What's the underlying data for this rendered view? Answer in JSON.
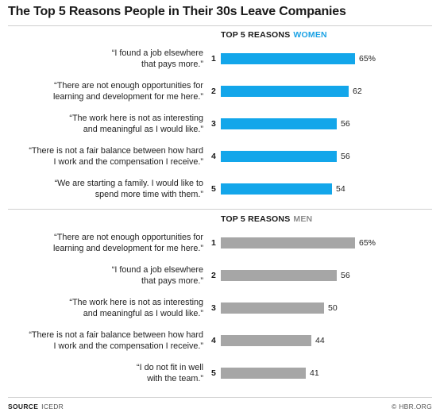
{
  "title": "The Top 5 Reasons People in Their 30s Leave Companies",
  "chart_data": [
    {
      "type": "bar",
      "orientation": "horizontal",
      "header_prefix": "TOP 5 REASONS",
      "header_group": "WOMEN",
      "accent_color": "#1aa1e4",
      "bar_color": "#13a6ea",
      "ranks": [
        "1",
        "2",
        "3",
        "4",
        "5"
      ],
      "categories": [
        [
          "“I found a job elsewhere",
          "that pays more.”"
        ],
        [
          "“There are not enough opportunities for",
          "learning and development for me here.”"
        ],
        [
          "“The work here is not as interesting",
          "and meaningful as I would like.”"
        ],
        [
          "“There is not a fair balance between how hard",
          "I work and the compensation I receive.”"
        ],
        [
          "“We are starting a family. I would like to",
          "spend more time with them.”"
        ]
      ],
      "values": [
        65,
        62,
        56,
        56,
        54
      ],
      "value_labels": [
        "65%",
        "62",
        "56",
        "56",
        "54"
      ],
      "unit": "%",
      "xlim": [
        0,
        100
      ]
    },
    {
      "type": "bar",
      "orientation": "horizontal",
      "header_prefix": "TOP 5 REASONS",
      "header_group": "MEN",
      "accent_color": "#8c8c8c",
      "bar_color": "#a6a6a6",
      "ranks": [
        "1",
        "2",
        "3",
        "4",
        "5"
      ],
      "categories": [
        [
          "“There are not enough opportunities for",
          "learning and development for me here.”"
        ],
        [
          "“I found a job elsewhere",
          "that pays more.”"
        ],
        [
          "“The work here is not as interesting",
          "and meaningful as I would like.”"
        ],
        [
          "“There is not a fair balance between how hard",
          "I work and the compensation I receive.”"
        ],
        [
          "“I do not fit in well",
          "with the team.”"
        ]
      ],
      "values": [
        65,
        56,
        50,
        44,
        41
      ],
      "value_labels": [
        "65%",
        "56",
        "50",
        "44",
        "41"
      ],
      "unit": "%",
      "xlim": [
        0,
        100
      ]
    }
  ],
  "footer": {
    "source_label": "SOURCE",
    "source_text": "ICEDR",
    "credit": "© HBR.ORG"
  }
}
